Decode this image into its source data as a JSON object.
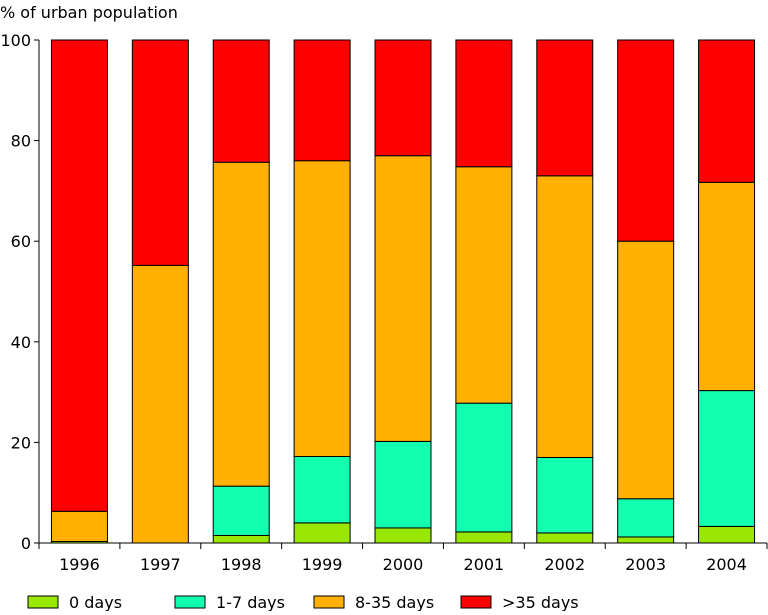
{
  "chart_data": {
    "type": "bar",
    "stacked": true,
    "title": "",
    "ylabel": "% of urban population",
    "xlabel": "",
    "ylim": [
      0,
      100
    ],
    "yticks": [
      0,
      20,
      40,
      60,
      80,
      100
    ],
    "categories": [
      "1996",
      "1997",
      "1998",
      "1999",
      "2000",
      "2001",
      "2002",
      "2003",
      "2004"
    ],
    "series": [
      {
        "name": "0 days",
        "color": "#99e600",
        "values": [
          0.3,
          0.0,
          1.5,
          4.0,
          3.0,
          2.2,
          2.0,
          1.2,
          3.3
        ]
      },
      {
        "name": "1-7 days",
        "color": "#13ffb0",
        "values": [
          0.0,
          0.0,
          9.8,
          13.2,
          17.2,
          25.6,
          15.0,
          7.6,
          27.0
        ]
      },
      {
        "name": "8-35 days",
        "color": "#ffb000",
        "values": [
          6.0,
          55.2,
          64.4,
          58.8,
          56.8,
          47.0,
          56.0,
          51.2,
          41.4
        ]
      },
      {
        "name": ">35 days",
        "color": "#ff0000",
        "values": [
          93.7,
          44.8,
          24.3,
          24.0,
          23.0,
          25.2,
          27.0,
          40.0,
          28.3
        ]
      }
    ],
    "legend_position": "bottom"
  }
}
